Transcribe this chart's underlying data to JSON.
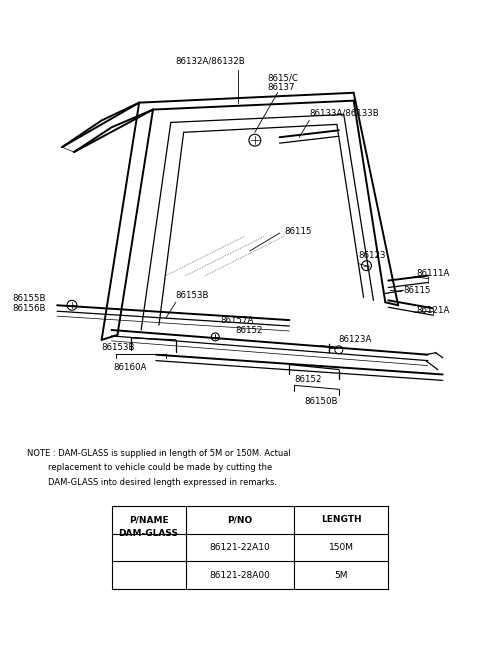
{
  "bg_color": "#ffffff",
  "note_text": "NOTE : DAM-GLASS is supplied in length of 5M or 150M. Actual\n        replacement to vehicle could be made by cutting the\n        DAM-GLASS into desired length expressed in remarks.",
  "table_headers": [
    "P/NAME",
    "P/NO",
    "LENGTH"
  ],
  "table_rows": [
    [
      "DAM-GLASS",
      "86121-22A10",
      "150M"
    ],
    [
      "",
      "86121-28A00",
      "5M"
    ]
  ]
}
